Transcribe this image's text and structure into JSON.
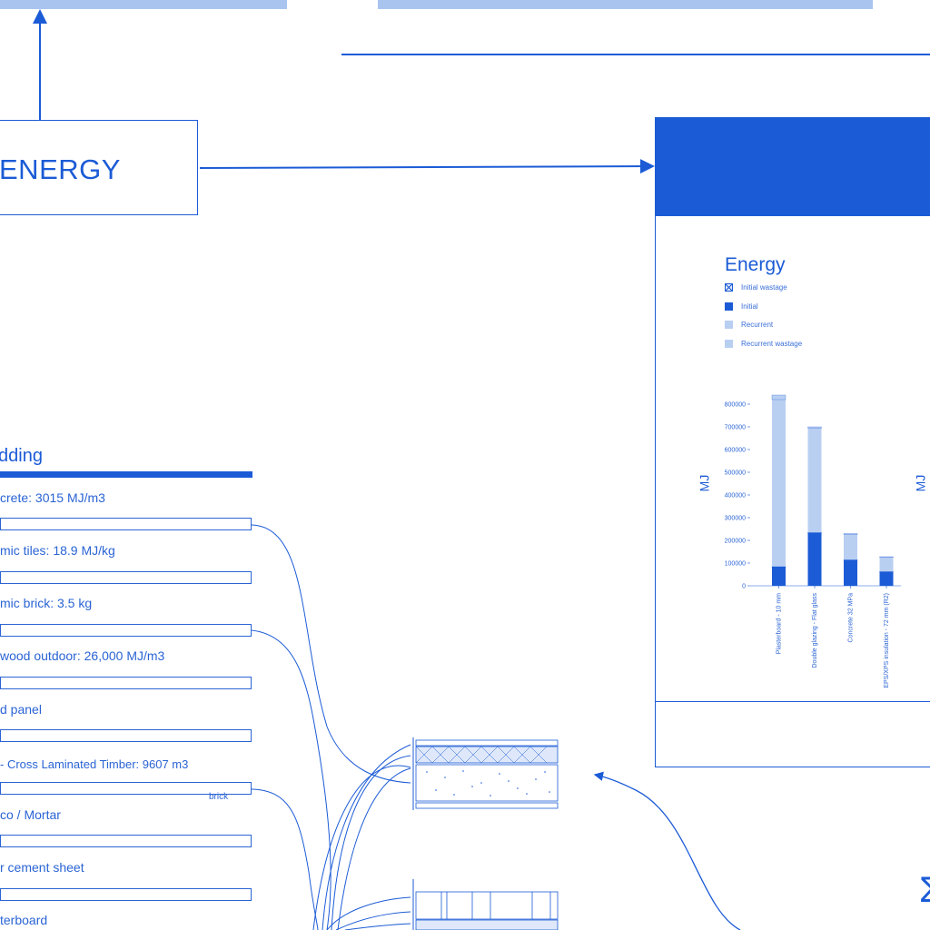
{
  "energy_box": {
    "label": "ENERGY"
  },
  "panel": {
    "chart_title": "Energy",
    "legend": [
      {
        "label": "Initial wastage",
        "color": "#1b5bd6",
        "style": "x"
      },
      {
        "label": "Initial",
        "color": "#1b5bd6",
        "style": "solid"
      },
      {
        "label": "Recurrent",
        "color": "#b9cff2",
        "style": "solid"
      },
      {
        "label": "Recurrent wastage",
        "color": "#b9cff2",
        "style": "solid"
      }
    ],
    "y_label_left": "MJ",
    "y_label_right": "MJ"
  },
  "cladding": {
    "title": "dding",
    "materials": [
      {
        "label": "crete:  3015 MJ/m3"
      },
      {
        "label": "mic tiles: 18.9 MJ/kg"
      },
      {
        "label": "mic brick: 3.5 kg"
      },
      {
        "label": "wood outdoor: 26,000 MJ/m3"
      },
      {
        "label": "d panel"
      },
      {
        "label": "- Cross Laminated Timber: 9607 m3"
      },
      {
        "label": "co / Mortar"
      },
      {
        "label": "r cement sheet"
      },
      {
        "label": "terboard"
      }
    ],
    "brick_note": "brick"
  },
  "sigma": "Σ",
  "chart_data": {
    "type": "bar",
    "title": "Energy",
    "ylabel": "MJ",
    "ylim": [
      0,
      800000
    ],
    "yticks": [
      "0",
      "100000",
      "200000",
      "300000",
      "400000",
      "500000",
      "600000",
      "700000",
      "800000"
    ],
    "categories": [
      "Plasterboard - 10 mm",
      "Double glazing - Flat glass",
      "Concrete 32 MPa",
      "EPS/XPS insulation - 72 mm (R2)"
    ],
    "series": [
      {
        "name": "Initial",
        "values": [
          80000,
          230000,
          110000,
          60000
        ],
        "color": "#1b5bd6"
      },
      {
        "name": "Initial wastage",
        "values": [
          5000,
          5000,
          5000,
          3000
        ],
        "color": "#1b5bd6"
      },
      {
        "name": "Recurrent",
        "values": [
          735000,
          460000,
          110000,
          62000
        ],
        "color": "#b9cff2"
      },
      {
        "name": "Recurrent wastage",
        "values": [
          20000,
          5000,
          5000,
          3000
        ],
        "color": "#b9cff2"
      }
    ],
    "grid": false,
    "legend": "top-left"
  }
}
